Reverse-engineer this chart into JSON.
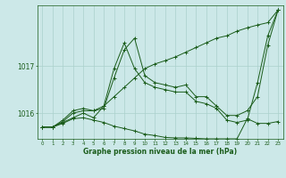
{
  "title": "Graphe pression niveau de la mer (hPa)",
  "background_color": "#cce8e8",
  "grid_color": "#aad0cc",
  "line_color": "#1a5c1a",
  "ylim": [
    1015.45,
    1018.3
  ],
  "yticks": [
    1016,
    1017
  ],
  "xlim": [
    -0.5,
    23.5
  ],
  "xticks": [
    0,
    1,
    2,
    3,
    4,
    5,
    6,
    7,
    8,
    9,
    10,
    11,
    12,
    13,
    14,
    15,
    16,
    17,
    18,
    19,
    20,
    21,
    22,
    23
  ],
  "series": [
    {
      "name": "line_zigzag",
      "x": [
        0,
        1,
        2,
        3,
        4,
        5,
        6,
        7,
        8,
        9,
        10,
        11,
        12,
        13,
        14,
        15,
        16,
        17,
        18,
        19,
        20,
        21,
        22,
        23
      ],
      "y": [
        1015.7,
        1015.7,
        1015.85,
        1016.05,
        1016.1,
        1016.05,
        1016.1,
        1016.75,
        1017.35,
        1017.6,
        1016.8,
        1016.65,
        1016.6,
        1016.55,
        1016.6,
        1016.35,
        1016.35,
        1016.15,
        1015.95,
        1015.95,
        1016.05,
        1016.35,
        1017.45,
        1018.2
      ]
    },
    {
      "name": "line_zigzag2",
      "x": [
        0,
        1,
        2,
        3,
        4,
        5,
        6,
        7,
        8,
        9,
        10,
        11,
        12,
        13,
        14,
        15,
        16,
        17,
        18,
        19,
        20,
        21,
        22,
        23
      ],
      "y": [
        1015.7,
        1015.7,
        1015.8,
        1015.9,
        1016.0,
        1015.9,
        1016.15,
        1016.95,
        1017.5,
        1016.95,
        1016.65,
        1016.55,
        1016.5,
        1016.45,
        1016.45,
        1016.25,
        1016.2,
        1016.1,
        1015.85,
        1015.8,
        1015.85,
        1016.65,
        1017.65,
        1018.2
      ]
    },
    {
      "name": "line_rising",
      "x": [
        0,
        1,
        2,
        3,
        4,
        5,
        6,
        7,
        8,
        9,
        10,
        11,
        12,
        13,
        14,
        15,
        16,
        17,
        18,
        19,
        20,
        21,
        22,
        23
      ],
      "y": [
        1015.7,
        1015.7,
        1015.82,
        1016.0,
        1016.05,
        1016.05,
        1016.15,
        1016.35,
        1016.55,
        1016.75,
        1016.95,
        1017.05,
        1017.12,
        1017.2,
        1017.3,
        1017.4,
        1017.5,
        1017.6,
        1017.65,
        1017.75,
        1017.82,
        1017.88,
        1017.93,
        1018.2
      ]
    },
    {
      "name": "line_falling",
      "x": [
        0,
        1,
        2,
        3,
        4,
        5,
        6,
        7,
        8,
        9,
        10,
        11,
        12,
        13,
        14,
        15,
        16,
        17,
        18,
        19,
        20,
        21,
        22,
        23
      ],
      "y": [
        1015.7,
        1015.7,
        1015.78,
        1015.88,
        1015.9,
        1015.85,
        1015.8,
        1015.72,
        1015.67,
        1015.62,
        1015.55,
        1015.52,
        1015.48,
        1015.47,
        1015.47,
        1015.46,
        1015.45,
        1015.45,
        1015.45,
        1015.45,
        1015.88,
        1015.78,
        1015.78,
        1015.82
      ]
    }
  ]
}
